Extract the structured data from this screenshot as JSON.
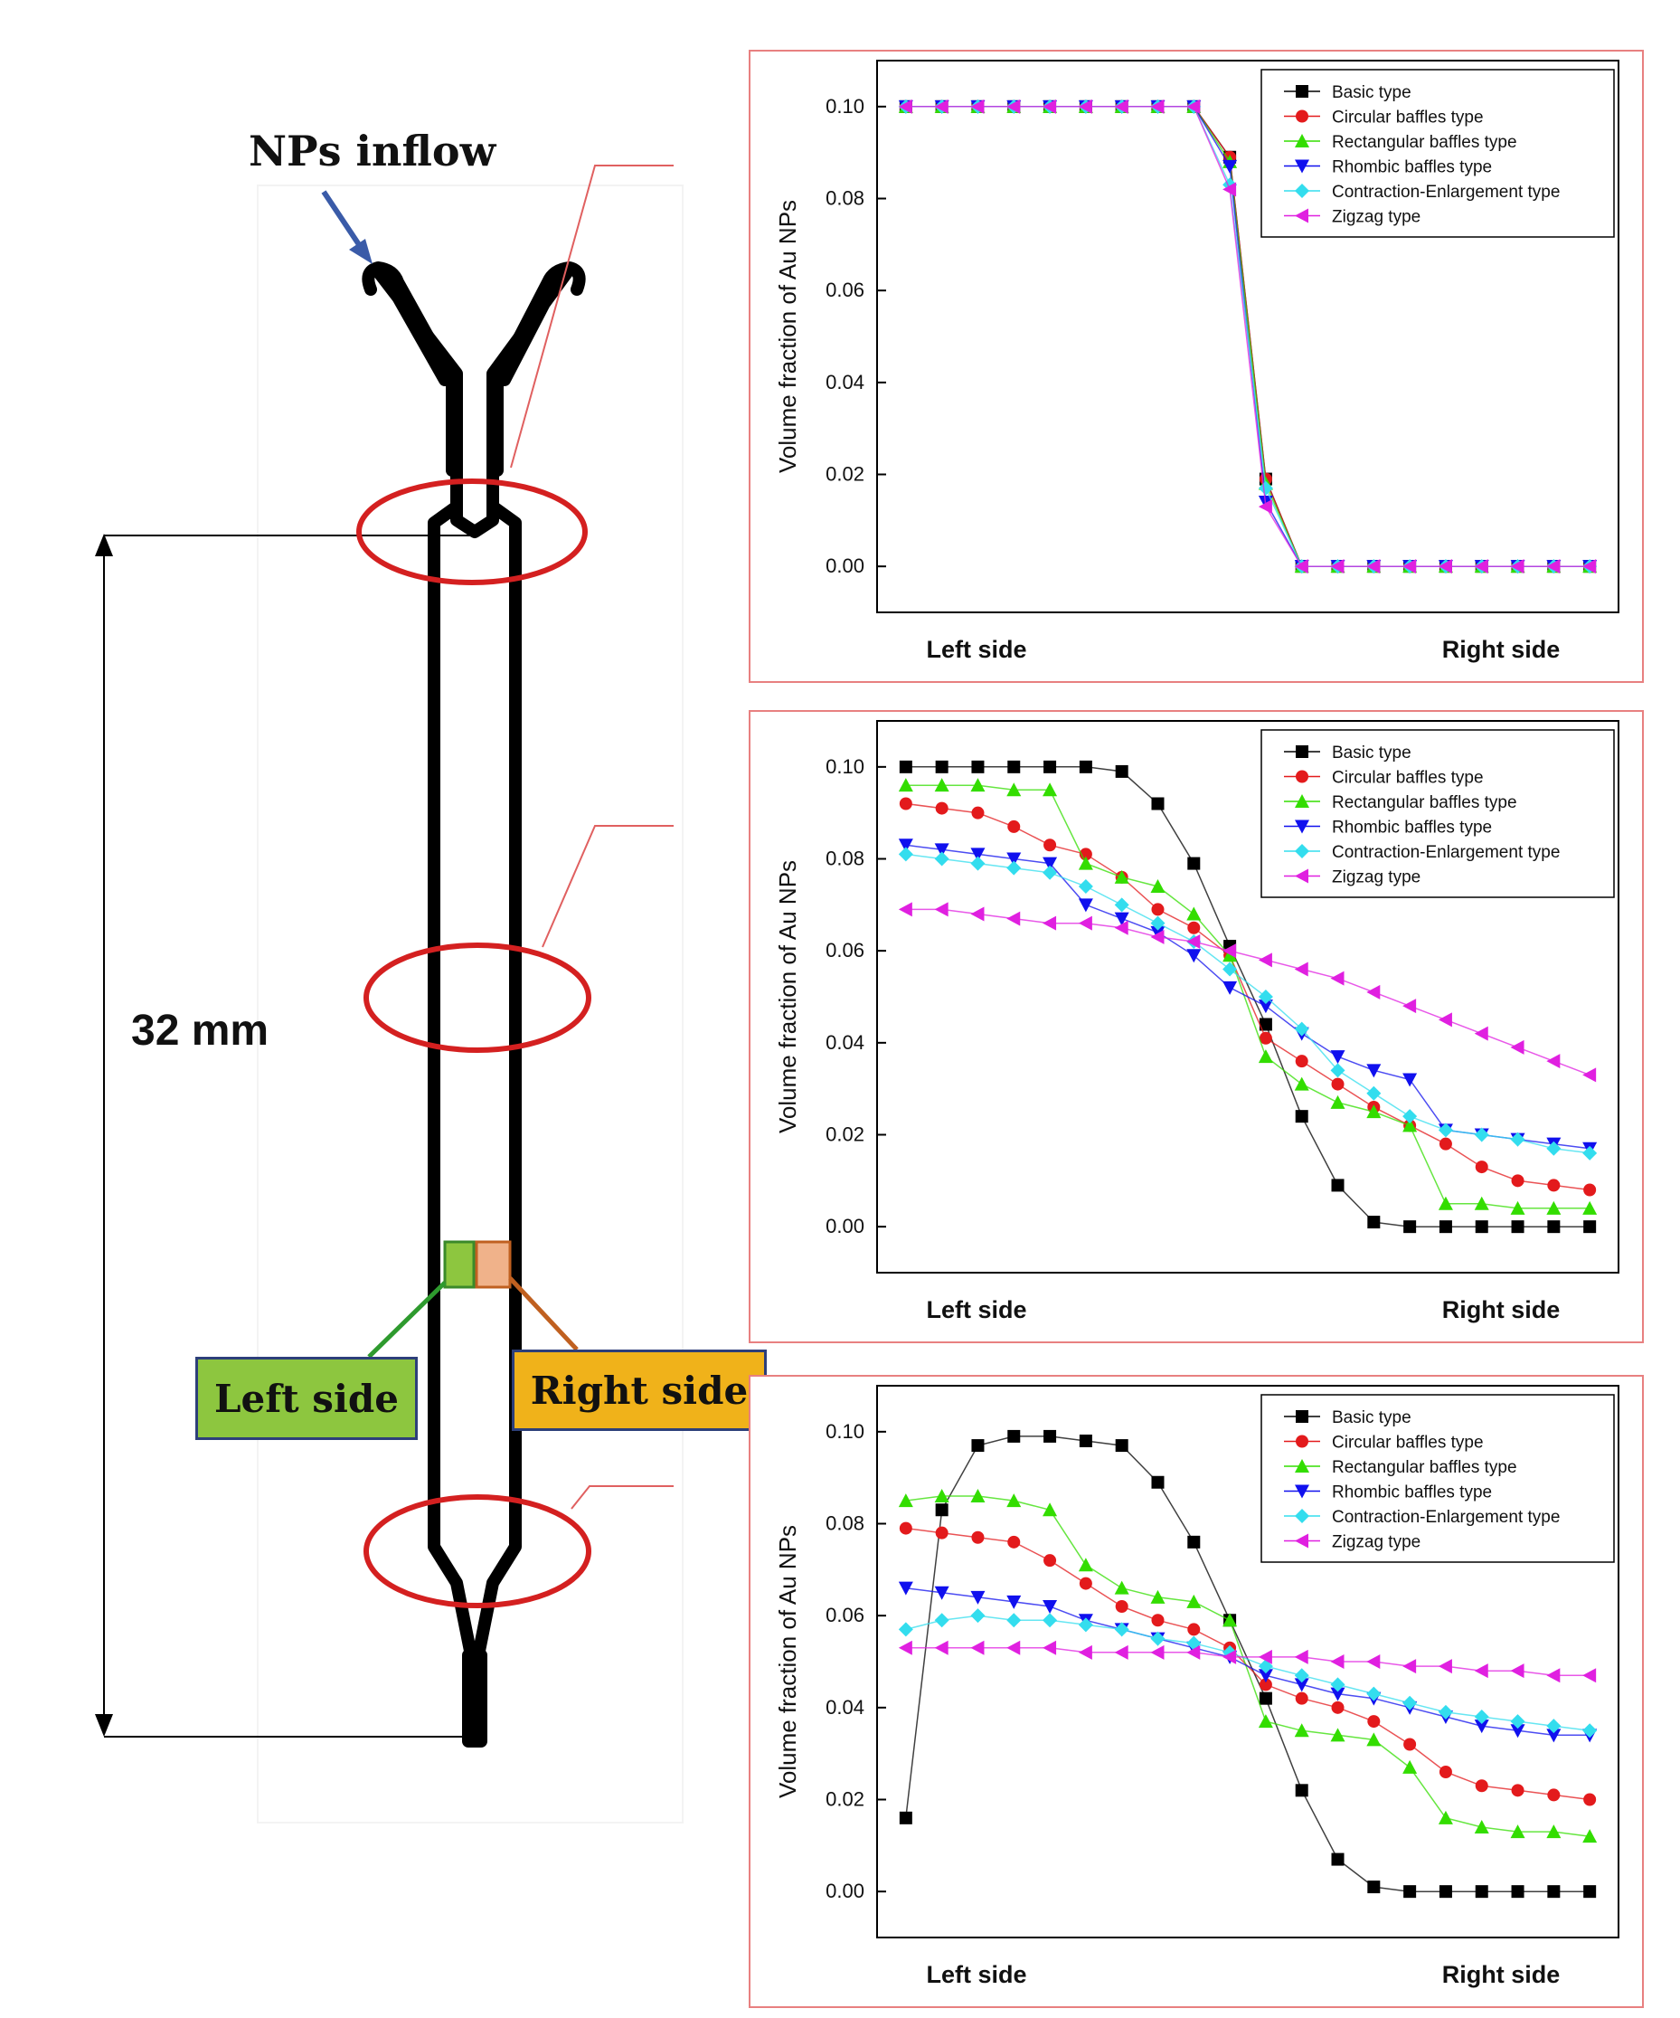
{
  "diagram": {
    "inflow_label": "NPs inflow",
    "dimension_label": "32 mm",
    "left_side_label": "Left side",
    "right_side_label": "Right side"
  },
  "colors": {
    "frame": "#e88080",
    "ellipse": "#d42020",
    "channel": "#000000",
    "arrow": "#3a5ba8",
    "left_patch": "#8dc63f",
    "right_patch": "#f0b28a"
  },
  "chart_data": [
    {
      "type": "line",
      "ylabel": "Volume fraction of Au NPs",
      "xlabel_left": "Left side",
      "xlabel_right": "Right side",
      "ylim": [
        -0.01,
        0.11
      ],
      "yticks": [
        "0.00",
        "0.02",
        "0.04",
        "0.06",
        "0.08",
        "0.10"
      ],
      "legend_position": "top-right",
      "x": [
        1,
        2,
        3,
        4,
        5,
        6,
        7,
        8,
        9,
        10,
        11,
        12,
        13,
        14,
        15,
        16,
        17,
        18,
        19,
        20
      ],
      "series": [
        {
          "name": "Basic type",
          "color": "#000000",
          "marker": "square",
          "values": [
            0.1,
            0.1,
            0.1,
            0.1,
            0.1,
            0.1,
            0.1,
            0.1,
            0.1,
            0.089,
            0.019,
            0,
            0,
            0,
            0,
            0,
            0,
            0,
            0,
            0
          ]
        },
        {
          "name": "Circular baffles type",
          "color": "#e31a1c",
          "marker": "circle",
          "values": [
            0.1,
            0.1,
            0.1,
            0.1,
            0.1,
            0.1,
            0.1,
            0.1,
            0.1,
            0.089,
            0.019,
            0,
            0,
            0,
            0,
            0,
            0,
            0,
            0,
            0
          ]
        },
        {
          "name": "Rectangular baffles type",
          "color": "#33dd00",
          "marker": "triangle-up",
          "values": [
            0.1,
            0.1,
            0.1,
            0.1,
            0.1,
            0.1,
            0.1,
            0.1,
            0.1,
            0.088,
            0.018,
            0,
            0,
            0,
            0,
            0,
            0,
            0,
            0,
            0
          ]
        },
        {
          "name": "Rhombic baffles type",
          "color": "#1010ee",
          "marker": "triangle-down",
          "values": [
            0.1,
            0.1,
            0.1,
            0.1,
            0.1,
            0.1,
            0.1,
            0.1,
            0.1,
            0.087,
            0.014,
            0,
            0,
            0,
            0,
            0,
            0,
            0,
            0,
            0
          ]
        },
        {
          "name": "Contraction-Enlargement type",
          "color": "#33ddee",
          "marker": "diamond",
          "values": [
            0.1,
            0.1,
            0.1,
            0.1,
            0.1,
            0.1,
            0.1,
            0.1,
            0.1,
            0.083,
            0.017,
            0,
            0,
            0,
            0,
            0,
            0,
            0,
            0,
            0
          ]
        },
        {
          "name": "Zigzag type",
          "color": "#e020e0",
          "marker": "triangle-left",
          "values": [
            0.1,
            0.1,
            0.1,
            0.1,
            0.1,
            0.1,
            0.1,
            0.1,
            0.1,
            0.082,
            0.013,
            0,
            0,
            0,
            0,
            0,
            0,
            0,
            0,
            0
          ]
        }
      ]
    },
    {
      "type": "line",
      "ylabel": "Volume fraction of Au NPs",
      "xlabel_left": "Left side",
      "xlabel_right": "Right side",
      "ylim": [
        -0.01,
        0.11
      ],
      "yticks": [
        "0.00",
        "0.02",
        "0.04",
        "0.06",
        "0.08",
        "0.10"
      ],
      "legend_position": "top-right",
      "x": [
        1,
        2,
        3,
        4,
        5,
        6,
        7,
        8,
        9,
        10,
        11,
        12,
        13,
        14,
        15,
        16,
        17,
        18,
        19,
        20
      ],
      "series": [
        {
          "name": "Basic type",
          "color": "#000000",
          "marker": "square",
          "values": [
            0.1,
            0.1,
            0.1,
            0.1,
            0.1,
            0.1,
            0.099,
            0.092,
            0.079,
            0.061,
            0.044,
            0.024,
            0.009,
            0.001,
            0,
            0,
            0,
            0,
            0,
            0
          ]
        },
        {
          "name": "Circular baffles type",
          "color": "#e31a1c",
          "marker": "circle",
          "values": [
            0.092,
            0.091,
            0.09,
            0.087,
            0.083,
            0.081,
            0.076,
            0.069,
            0.065,
            0.059,
            0.041,
            0.036,
            0.031,
            0.026,
            0.022,
            0.018,
            0.013,
            0.01,
            0.009,
            0.008
          ]
        },
        {
          "name": "Rectangular baffles type",
          "color": "#33dd00",
          "marker": "triangle-up",
          "values": [
            0.096,
            0.096,
            0.096,
            0.095,
            0.095,
            0.079,
            0.076,
            0.074,
            0.068,
            0.059,
            0.037,
            0.031,
            0.027,
            0.025,
            0.022,
            0.005,
            0.005,
            0.004,
            0.004,
            0.004
          ]
        },
        {
          "name": "Rhombic baffles type",
          "color": "#1010ee",
          "marker": "triangle-down",
          "values": [
            0.083,
            0.082,
            0.081,
            0.08,
            0.079,
            0.07,
            0.067,
            0.064,
            0.059,
            0.052,
            0.048,
            0.042,
            0.037,
            0.034,
            0.032,
            0.021,
            0.02,
            0.019,
            0.018,
            0.017
          ]
        },
        {
          "name": "Contraction-Enlargement type",
          "color": "#33ddee",
          "marker": "diamond",
          "values": [
            0.081,
            0.08,
            0.079,
            0.078,
            0.077,
            0.074,
            0.07,
            0.066,
            0.062,
            0.056,
            0.05,
            0.043,
            0.034,
            0.029,
            0.024,
            0.021,
            0.02,
            0.019,
            0.017,
            0.016
          ]
        },
        {
          "name": "Zigzag type",
          "color": "#e020e0",
          "marker": "triangle-left",
          "values": [
            0.069,
            0.069,
            0.068,
            0.067,
            0.066,
            0.066,
            0.065,
            0.063,
            0.062,
            0.06,
            0.058,
            0.056,
            0.054,
            0.051,
            0.048,
            0.045,
            0.042,
            0.039,
            0.036,
            0.033
          ]
        }
      ]
    },
    {
      "type": "line",
      "ylabel": "Volume fraction of Au NPs",
      "xlabel_left": "Left side",
      "xlabel_right": "Right side",
      "ylim": [
        -0.01,
        0.11
      ],
      "yticks": [
        "0.00",
        "0.02",
        "0.04",
        "0.06",
        "0.08",
        "0.10"
      ],
      "legend_position": "top-right",
      "x": [
        1,
        2,
        3,
        4,
        5,
        6,
        7,
        8,
        9,
        10,
        11,
        12,
        13,
        14,
        15,
        16,
        17,
        18,
        19,
        20
      ],
      "series": [
        {
          "name": "Basic type",
          "color": "#000000",
          "marker": "square",
          "values": [
            0.016,
            0.083,
            0.097,
            0.099,
            0.099,
            0.098,
            0.097,
            0.089,
            0.076,
            0.059,
            0.042,
            0.022,
            0.007,
            0.001,
            0,
            0,
            0,
            0,
            0,
            0
          ]
        },
        {
          "name": "Circular baffles type",
          "color": "#e31a1c",
          "marker": "circle",
          "values": [
            0.079,
            0.078,
            0.077,
            0.076,
            0.072,
            0.067,
            0.062,
            0.059,
            0.057,
            0.053,
            0.045,
            0.042,
            0.04,
            0.037,
            0.032,
            0.026,
            0.023,
            0.022,
            0.021,
            0.02
          ]
        },
        {
          "name": "Rectangular baffles type",
          "color": "#33dd00",
          "marker": "triangle-up",
          "values": [
            0.085,
            0.086,
            0.086,
            0.085,
            0.083,
            0.071,
            0.066,
            0.064,
            0.063,
            0.059,
            0.037,
            0.035,
            0.034,
            0.033,
            0.027,
            0.016,
            0.014,
            0.013,
            0.013,
            0.012
          ]
        },
        {
          "name": "Rhombic baffles type",
          "color": "#1010ee",
          "marker": "triangle-down",
          "values": [
            0.066,
            0.065,
            0.064,
            0.063,
            0.062,
            0.059,
            0.057,
            0.055,
            0.053,
            0.051,
            0.047,
            0.045,
            0.043,
            0.042,
            0.04,
            0.038,
            0.036,
            0.035,
            0.034,
            0.034
          ]
        },
        {
          "name": "Contraction-Enlargement type",
          "color": "#33ddee",
          "marker": "diamond",
          "values": [
            0.057,
            0.059,
            0.06,
            0.059,
            0.059,
            0.058,
            0.057,
            0.055,
            0.054,
            0.052,
            0.049,
            0.047,
            0.045,
            0.043,
            0.041,
            0.039,
            0.038,
            0.037,
            0.036,
            0.035
          ]
        },
        {
          "name": "Zigzag type",
          "color": "#e020e0",
          "marker": "triangle-left",
          "values": [
            0.053,
            0.053,
            0.053,
            0.053,
            0.053,
            0.052,
            0.052,
            0.052,
            0.052,
            0.051,
            0.051,
            0.051,
            0.05,
            0.05,
            0.049,
            0.049,
            0.048,
            0.048,
            0.047,
            0.047
          ]
        }
      ]
    }
  ]
}
